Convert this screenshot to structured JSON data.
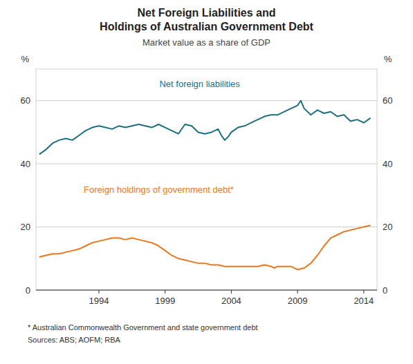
{
  "chart_data": {
    "type": "line",
    "title": "Net Foreign Liabilities and\nHoldings of Australian Government Debt",
    "subtitle": "Market value as a share of GDP",
    "ylabel": "%",
    "y2label": "%",
    "footnote": "*    Australian Commonwealth Government and state government debt",
    "sources": "Sources:  ABS; AOFM; RBA",
    "xlim": [
      1989.25,
      2015.0
    ],
    "xticks": [
      1994,
      1999,
      2004,
      2009,
      2014
    ],
    "ylim": [
      0,
      70
    ],
    "yticks": [
      0,
      20,
      40,
      60
    ],
    "y2lim": [
      0,
      70
    ],
    "y2ticks": [
      0,
      20,
      40,
      60
    ],
    "grid": true,
    "series": [
      {
        "name": "Net foreign liabilities",
        "color": "#1b6f7f",
        "x": [
          1989.5,
          1990.0,
          1990.5,
          1991.0,
          1991.5,
          1992.0,
          1992.5,
          1993.0,
          1993.5,
          1994.0,
          1994.5,
          1995.0,
          1995.5,
          1996.0,
          1996.5,
          1997.0,
          1997.5,
          1998.0,
          1998.5,
          1999.0,
          1999.5,
          2000.0,
          2000.5,
          2001.0,
          2001.5,
          2002.0,
          2002.5,
          2003.0,
          2003.25,
          2003.5,
          2003.75,
          2004.0,
          2004.5,
          2005.0,
          2005.5,
          2006.0,
          2006.5,
          2007.0,
          2007.5,
          2008.0,
          2008.5,
          2009.0,
          2009.25,
          2009.5,
          2010.0,
          2010.5,
          2011.0,
          2011.5,
          2012.0,
          2012.5,
          2013.0,
          2013.5,
          2014.0,
          2014.5
        ],
        "values": [
          43.0,
          44.5,
          46.5,
          47.5,
          48.0,
          47.5,
          49.0,
          50.5,
          51.5,
          52.0,
          51.5,
          51.0,
          52.0,
          51.5,
          52.0,
          52.5,
          52.0,
          51.5,
          52.5,
          51.5,
          50.5,
          49.5,
          52.5,
          52.0,
          50.0,
          49.5,
          50.0,
          51.0,
          49.0,
          47.5,
          48.5,
          50.0,
          51.5,
          52.0,
          53.0,
          54.0,
          55.0,
          55.5,
          55.5,
          56.5,
          57.5,
          58.5,
          60.0,
          57.5,
          55.5,
          57.0,
          56.0,
          56.5,
          55.0,
          55.5,
          53.5,
          54.0,
          53.0,
          54.5
        ]
      },
      {
        "name": "Foreign holdings of government debt*",
        "color": "#e8771e",
        "x": [
          1989.5,
          1990.0,
          1990.5,
          1991.0,
          1991.5,
          1992.0,
          1992.5,
          1993.0,
          1993.5,
          1994.0,
          1994.5,
          1995.0,
          1995.5,
          1996.0,
          1996.5,
          1997.0,
          1997.5,
          1998.0,
          1998.5,
          1999.0,
          1999.5,
          2000.0,
          2000.5,
          2001.0,
          2001.5,
          2002.0,
          2002.5,
          2003.0,
          2003.5,
          2004.0,
          2004.5,
          2005.0,
          2005.5,
          2006.0,
          2006.5,
          2007.0,
          2007.25,
          2007.5,
          2008.0,
          2008.5,
          2009.0,
          2009.5,
          2010.0,
          2010.5,
          2011.0,
          2011.5,
          2012.0,
          2012.5,
          2013.0,
          2013.5,
          2014.0,
          2014.5
        ],
        "values": [
          10.5,
          11.0,
          11.5,
          11.5,
          12.0,
          12.5,
          13.0,
          14.0,
          15.0,
          15.5,
          16.0,
          16.5,
          16.5,
          16.0,
          16.5,
          16.0,
          15.5,
          15.0,
          14.0,
          12.5,
          11.0,
          10.0,
          9.5,
          9.0,
          8.5,
          8.5,
          8.0,
          8.0,
          7.5,
          7.5,
          7.5,
          7.5,
          7.5,
          7.5,
          8.0,
          7.5,
          7.0,
          7.5,
          7.5,
          7.5,
          6.5,
          7.0,
          8.5,
          11.0,
          14.0,
          16.5,
          17.5,
          18.5,
          19.0,
          19.5,
          20.0,
          20.5
        ]
      }
    ]
  }
}
